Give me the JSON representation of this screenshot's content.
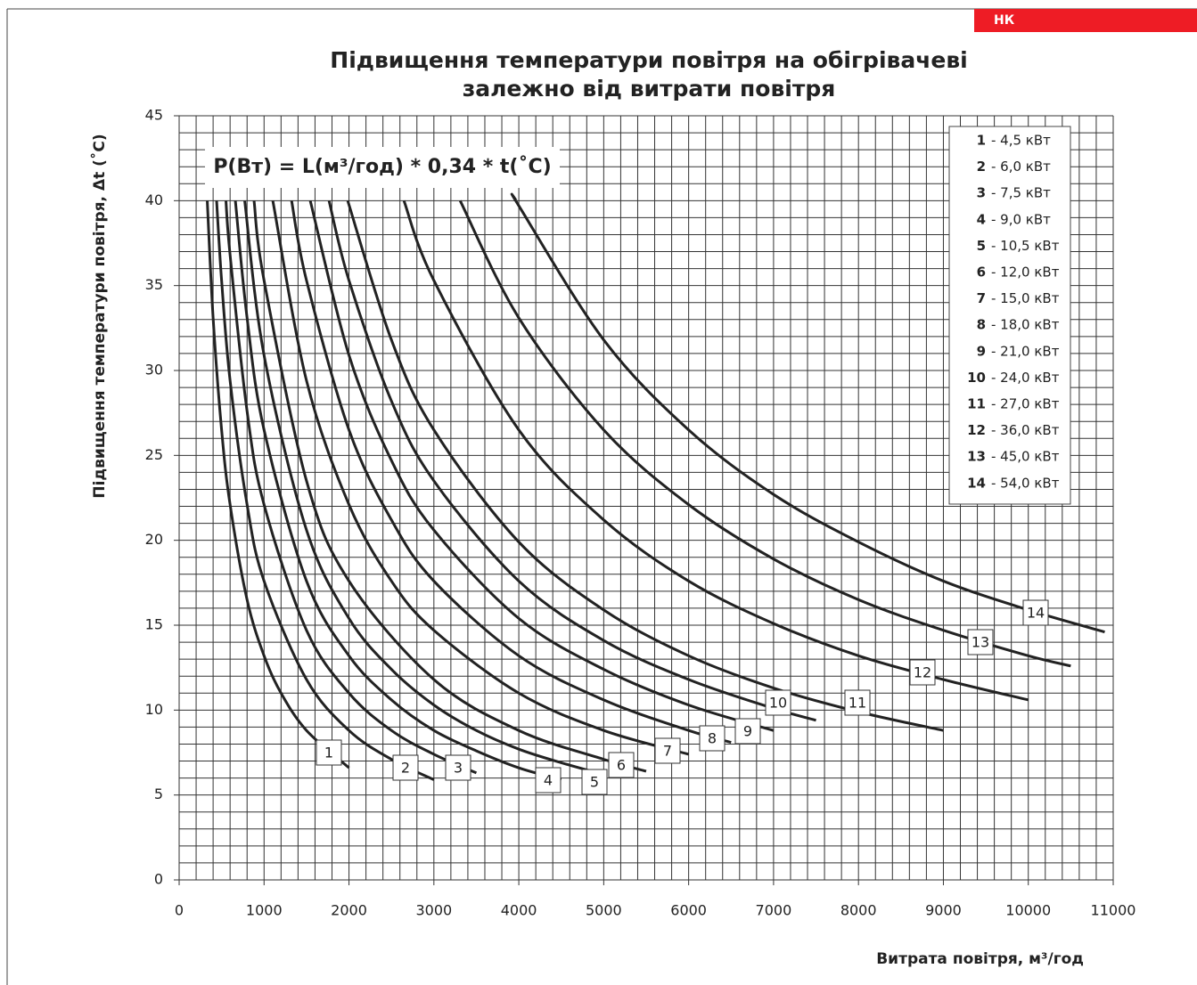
{
  "chart_data": {
    "type": "line",
    "badge": "НК",
    "title": [
      "Підвищення температури повітря на обігрівачеві",
      "залежно від витрати повітря"
    ],
    "annotation": "P(Вт) = L(м³/год) * 0,34 * t(˚C)",
    "xlabel": "Витрата повітря, м³/год",
    "ylabel": "Підвищення температури повітря, Δt (˚C)",
    "xlim": [
      0,
      11000
    ],
    "ylim": [
      0,
      45
    ],
    "xticks": [
      0,
      1000,
      2000,
      3000,
      4000,
      5000,
      6000,
      7000,
      8000,
      9000,
      10000,
      11000
    ],
    "yticks": [
      0,
      5,
      10,
      15,
      20,
      25,
      30,
      35,
      40,
      45
    ],
    "x_minor_ticks": [
      0,
      200,
      400,
      600,
      800,
      1000,
      1200,
      1400,
      1600,
      1800,
      2000,
      2200,
      2400,
      2600,
      2800,
      3000,
      3200,
      3400,
      3600,
      3800,
      4000,
      4200,
      4400,
      4600,
      4800,
      5000,
      5200,
      5400,
      5600,
      5800,
      6000,
      6200,
      6400,
      6600,
      6800,
      7000,
      7200,
      7400,
      7600,
      7800,
      8000,
      8200,
      8400,
      8600,
      8800,
      9000,
      9200,
      9400,
      9600,
      9800,
      10000,
      10200,
      10400,
      10600,
      10800,
      11000
    ],
    "y_minor_ticks": [
      0,
      1,
      2,
      3,
      4,
      5,
      6,
      7,
      8,
      9,
      10,
      11,
      12,
      13,
      14,
      15,
      16,
      17,
      18,
      19,
      20,
      21,
      22,
      23,
      24,
      25,
      26,
      27,
      28,
      29,
      30,
      31,
      32,
      33,
      34,
      35,
      36,
      37,
      38,
      39,
      40,
      41,
      42,
      43,
      44,
      45
    ],
    "grid": true,
    "color": "#222222",
    "series": [
      {
        "name": "1",
        "legend": "- 4,5 кВт",
        "x": [
          331,
          400,
          500,
          600,
          800,
          1000,
          1200,
          1500,
          2000
        ],
        "values": [
          40.0,
          33.1,
          26.5,
          22.1,
          16.5,
          13.2,
          11.0,
          8.8,
          6.6
        ]
      },
      {
        "name": "2",
        "legend": "- 6,0 кВт",
        "x": [
          441,
          500,
          600,
          800,
          1000,
          1500,
          2000,
          2500,
          3000
        ],
        "values": [
          40.0,
          35.3,
          29.4,
          22.1,
          17.6,
          11.8,
          8.8,
          7.1,
          5.9
        ]
      },
      {
        "name": "3",
        "legend": "- 7,5 кВт",
        "x": [
          551,
          600,
          800,
          1000,
          1500,
          2000,
          2500,
          3000,
          3500
        ],
        "values": [
          40.0,
          36.8,
          27.6,
          22.1,
          14.7,
          11.0,
          8.8,
          7.4,
          6.3
        ]
      },
      {
        "name": "4",
        "legend": "- 9,0 кВт",
        "x": [
          662,
          800,
          1000,
          1500,
          2000,
          2500,
          3000,
          3500,
          4000,
          4500
        ],
        "values": [
          40.0,
          33.1,
          26.5,
          17.6,
          13.2,
          10.6,
          8.8,
          7.6,
          6.6,
          5.9
        ]
      },
      {
        "name": "5",
        "legend": "- 10,5 кВт",
        "x": [
          772,
          1000,
          1500,
          2000,
          2500,
          3000,
          3500,
          4000,
          4500,
          5000
        ],
        "values": [
          40.0,
          30.9,
          20.6,
          15.4,
          12.4,
          10.3,
          8.8,
          7.7,
          6.9,
          6.2
        ]
      },
      {
        "name": "6",
        "legend": "- 12,0 кВт",
        "x": [
          882,
          1000,
          1500,
          2000,
          3000,
          4000,
          5000,
          5500
        ],
        "values": [
          40.0,
          35.3,
          23.5,
          17.6,
          11.8,
          8.8,
          7.1,
          6.4
        ]
      },
      {
        "name": "7",
        "legend": "- 15,0 кВт",
        "x": [
          1103,
          1500,
          2000,
          2500,
          3000,
          4000,
          5000,
          6000
        ],
        "values": [
          40.0,
          29.4,
          22.1,
          17.6,
          14.7,
          11.0,
          8.8,
          7.4
        ]
      },
      {
        "name": "8",
        "legend": "- 18,0 кВт",
        "x": [
          1324,
          1500,
          2000,
          2500,
          3000,
          4000,
          5000,
          6000,
          6500
        ],
        "values": [
          40.0,
          35.3,
          26.5,
          21.2,
          17.6,
          13.2,
          10.6,
          8.8,
          8.1
        ]
      },
      {
        "name": "9",
        "legend": "- 21,0 кВт",
        "x": [
          1544,
          2000,
          2500,
          3000,
          4000,
          5000,
          6000,
          7000
        ],
        "values": [
          40.0,
          30.9,
          24.7,
          20.6,
          15.4,
          12.4,
          10.3,
          8.8
        ]
      },
      {
        "name": "10",
        "legend": "- 24,0 кВт",
        "x": [
          1765,
          2000,
          2500,
          3000,
          4000,
          5000,
          6000,
          7000,
          7500
        ],
        "values": [
          40.0,
          35.3,
          28.2,
          23.5,
          17.6,
          14.1,
          11.8,
          10.1,
          9.4
        ]
      },
      {
        "name": "11",
        "legend": "- 27,0 кВт",
        "x": [
          1985,
          2500,
          3000,
          4000,
          5000,
          6000,
          7000,
          8000,
          9000
        ],
        "values": [
          40.0,
          31.8,
          26.5,
          19.9,
          15.9,
          13.2,
          11.3,
          9.9,
          8.8
        ]
      },
      {
        "name": "12",
        "legend": "- 36,0 кВт",
        "x": [
          2647,
          3000,
          4000,
          5000,
          6000,
          7000,
          8000,
          9000,
          10000
        ],
        "values": [
          40.0,
          35.3,
          26.5,
          21.2,
          17.6,
          15.1,
          13.2,
          11.8,
          10.6
        ]
      },
      {
        "name": "13",
        "legend": "- 45,0 кВт",
        "x": [
          3309,
          4000,
          5000,
          6000,
          7000,
          8000,
          9000,
          10000,
          10500
        ],
        "values": [
          40.0,
          33.1,
          26.5,
          22.1,
          18.9,
          16.5,
          14.7,
          13.2,
          12.6
        ]
      },
      {
        "name": "14",
        "legend": "- 54,0 кВт",
        "x": [
          3971,
          4000,
          5000,
          6000,
          7000,
          8000,
          9000,
          10000,
          10900
        ],
        "values": [
          40.0,
          39.7,
          31.8,
          26.5,
          22.7,
          19.9,
          17.6,
          15.9,
          14.6
        ]
      }
    ]
  }
}
